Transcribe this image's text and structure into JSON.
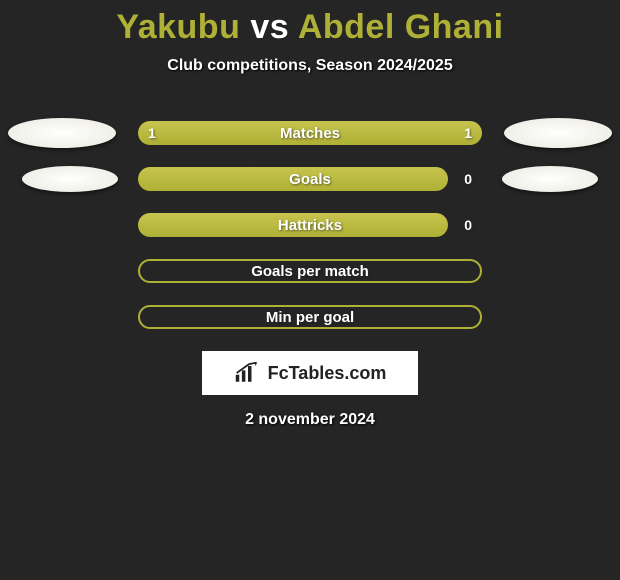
{
  "title": {
    "player1": "Yakubu",
    "vs": "vs",
    "player2": "Abdel Ghani"
  },
  "subtitle": "Club competitions, Season 2024/2025",
  "colors": {
    "accent": "#afb036",
    "accent_light": "#c7c44d",
    "background": "#252525",
    "text": "#ffffff"
  },
  "stats": [
    {
      "label": "Matches",
      "left_value": "1",
      "right_value": "1",
      "left_pct": 50,
      "right_pct": 50,
      "show_left_ellipse": true,
      "show_right_ellipse": true,
      "ellipse_size": "lg",
      "outlined": false
    },
    {
      "label": "Goals",
      "left_value": "",
      "right_value": "0",
      "left_pct": 90,
      "right_pct": 0,
      "show_left_ellipse": true,
      "show_right_ellipse": true,
      "ellipse_size": "sm",
      "outlined": false
    },
    {
      "label": "Hattricks",
      "left_value": "",
      "right_value": "0",
      "left_pct": 90,
      "right_pct": 0,
      "show_left_ellipse": false,
      "show_right_ellipse": false,
      "ellipse_size": "sm",
      "outlined": false
    },
    {
      "label": "Goals per match",
      "left_value": "",
      "right_value": "",
      "left_pct": 0,
      "right_pct": 0,
      "show_left_ellipse": false,
      "show_right_ellipse": false,
      "ellipse_size": "sm",
      "outlined": true
    },
    {
      "label": "Min per goal",
      "left_value": "",
      "right_value": "",
      "left_pct": 0,
      "right_pct": 0,
      "show_left_ellipse": false,
      "show_right_ellipse": false,
      "ellipse_size": "sm",
      "outlined": true
    }
  ],
  "logo_text": "FcTables.com",
  "date": "2 november 2024"
}
